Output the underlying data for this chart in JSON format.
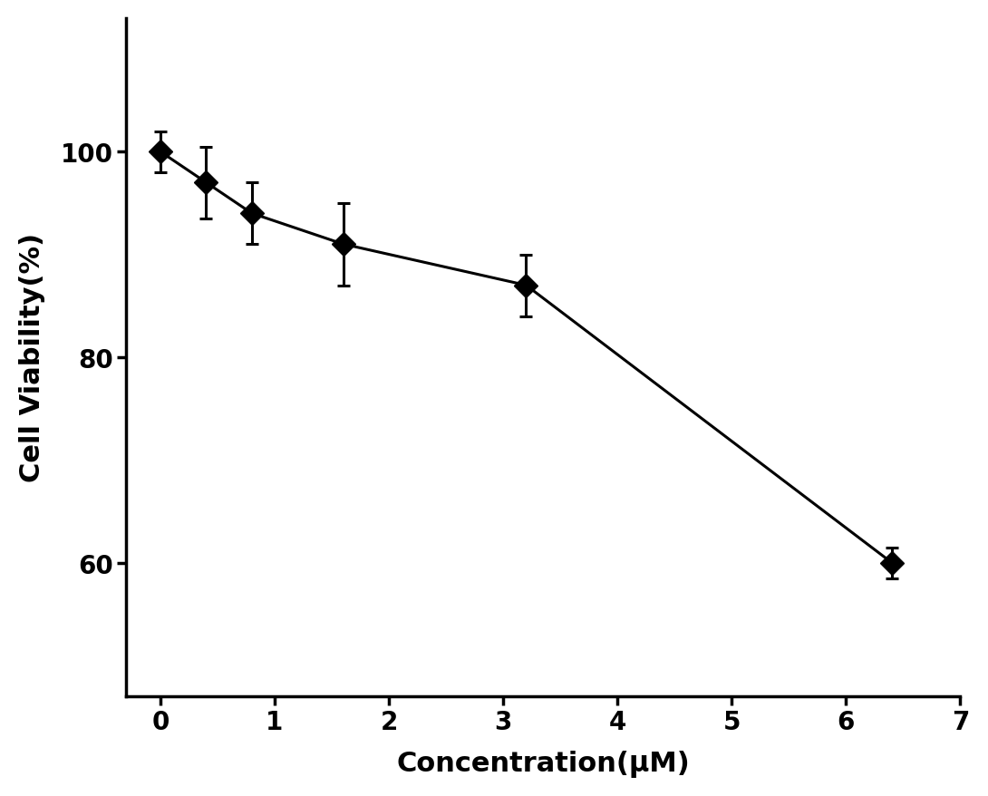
{
  "x": [
    0,
    0.4,
    0.8,
    1.6,
    3.2,
    6.4
  ],
  "y": [
    100,
    97,
    94,
    91,
    87,
    60
  ],
  "yerr": [
    2.0,
    3.5,
    3.0,
    4.0,
    3.0,
    1.5
  ],
  "xlabel": "Concentration(μM)",
  "ylabel": "Cell Viability(%)",
  "xlim": [
    -0.3,
    7.0
  ],
  "ylim": [
    47,
    113
  ],
  "yticks": [
    60,
    80,
    100
  ],
  "xticks": [
    0,
    1,
    2,
    3,
    4,
    5,
    6,
    7
  ],
  "background_color": "#ffffff",
  "line_color": "#000000",
  "marker_color": "#000000",
  "marker_size": 13,
  "line_width": 2.2,
  "cap_size": 5,
  "cap_thick": 2.2,
  "elinewidth": 2.2,
  "xlabel_fontsize": 22,
  "ylabel_fontsize": 22,
  "tick_fontsize": 20,
  "xlabel_fontweight": "bold",
  "ylabel_fontweight": "bold",
  "tick_fontweight": "bold",
  "spine_linewidth": 2.5
}
